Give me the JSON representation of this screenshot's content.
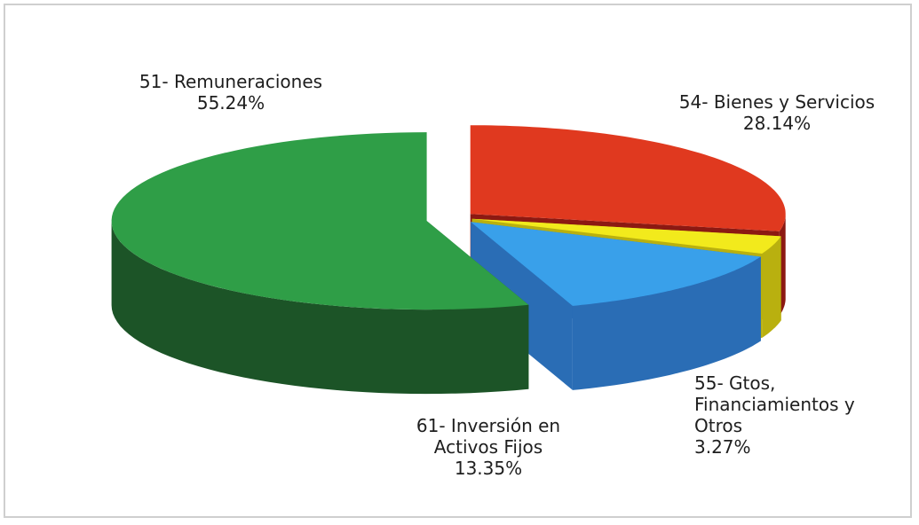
{
  "chart_data": {
    "type": "pie3d",
    "categories": [
      "54- Bienes y Servicios",
      "55- Gtos, Financiamientos y Otros",
      "61- Inversión en Activos Fijos",
      "51- Remuneraciones"
    ],
    "values": [
      28.14,
      3.27,
      13.35,
      55.24
    ],
    "value_labels": [
      "28.14%",
      "3.27%",
      "13.35%",
      "55.24%"
    ],
    "colors": [
      "#e0391f",
      "#f2ea1c",
      "#39a0ea",
      "#2f9e47"
    ],
    "side_colors": [
      "#8c1912",
      "#b9b00f",
      "#2a6db5",
      "#1c5427"
    ]
  }
}
